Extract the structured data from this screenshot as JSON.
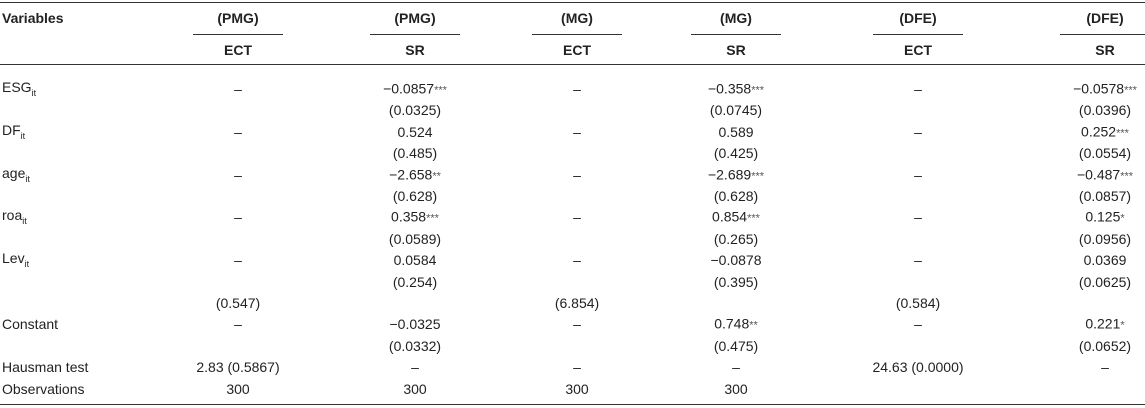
{
  "table": {
    "header": {
      "first": "Variables",
      "groups": [
        "(PMG)",
        "(PMG)",
        "(MG)",
        "(MG)",
        "(DFE)",
        "(DFE)"
      ],
      "sub": [
        "ECT",
        "SR",
        "ECT",
        "SR",
        "ECT",
        "SR"
      ]
    },
    "rows": [
      {
        "label": {
          "text": "ESG",
          "sub": "it"
        },
        "cells": [
          "–",
          {
            "text": "−0.0857",
            "stars": "***"
          },
          "–",
          {
            "text": "−0.358",
            "stars": "***"
          },
          "–",
          {
            "text": "−0.0578",
            "stars": "***"
          }
        ]
      },
      {
        "cells": [
          null,
          "(0.0325)",
          null,
          "(0.0745)",
          null,
          "(0.0396)"
        ]
      },
      {
        "label": {
          "text": "DF",
          "sub": "it"
        },
        "cells": [
          "–",
          "0.524",
          "–",
          "0.589",
          "–",
          {
            "text": "0.252",
            "stars": "***"
          }
        ]
      },
      {
        "cells": [
          null,
          "(0.485)",
          null,
          "(0.425)",
          null,
          "(0.0554)"
        ]
      },
      {
        "label": {
          "text": "age",
          "sub": "it"
        },
        "cells": [
          "–",
          {
            "text": "−2.658",
            "stars": "**"
          },
          "–",
          {
            "text": "−2.689",
            "stars": "***"
          },
          "–",
          {
            "text": "−0.487",
            "stars": "***"
          }
        ]
      },
      {
        "cells": [
          null,
          "(0.628)",
          null,
          "(0.628)",
          null,
          "(0.0857)"
        ]
      },
      {
        "label": {
          "text": "roa",
          "sub": "it"
        },
        "cells": [
          "–",
          {
            "text": "0.358",
            "stars": "***"
          },
          "–",
          {
            "text": "0.854",
            "stars": "***"
          },
          "–",
          {
            "text": "0.125",
            "stars": "*"
          }
        ]
      },
      {
        "cells": [
          null,
          "(0.0589)",
          null,
          "(0.265)",
          null,
          "(0.0956)"
        ]
      },
      {
        "label": {
          "text": "Lev",
          "sub": "it"
        },
        "cells": [
          "–",
          "0.0584",
          "–",
          "−0.0878",
          "–",
          "0.0369"
        ]
      },
      {
        "cells": [
          null,
          "(0.254)",
          null,
          "(0.395)",
          null,
          "(0.0625)"
        ]
      },
      {
        "cells": [
          "(0.547)",
          null,
          "(6.854)",
          null,
          "(0.584)",
          null
        ]
      },
      {
        "label": "Constant",
        "cells": [
          "–",
          "−0.0325",
          "–",
          {
            "text": "0.748",
            "stars": "**"
          },
          "–",
          {
            "text": "0.221",
            "stars": "*"
          }
        ]
      },
      {
        "cells": [
          null,
          "(0.0332)",
          null,
          "(0.475)",
          null,
          "(0.0652)"
        ]
      },
      {
        "label": "Hausman test",
        "cells": [
          "2.83 (0.5867)",
          "–",
          "–",
          "–",
          "24.63 (0.0000)",
          "–"
        ]
      },
      {
        "label": "Observations",
        "cells": [
          "300",
          "300",
          "300",
          "300",
          null,
          null
        ]
      }
    ]
  }
}
